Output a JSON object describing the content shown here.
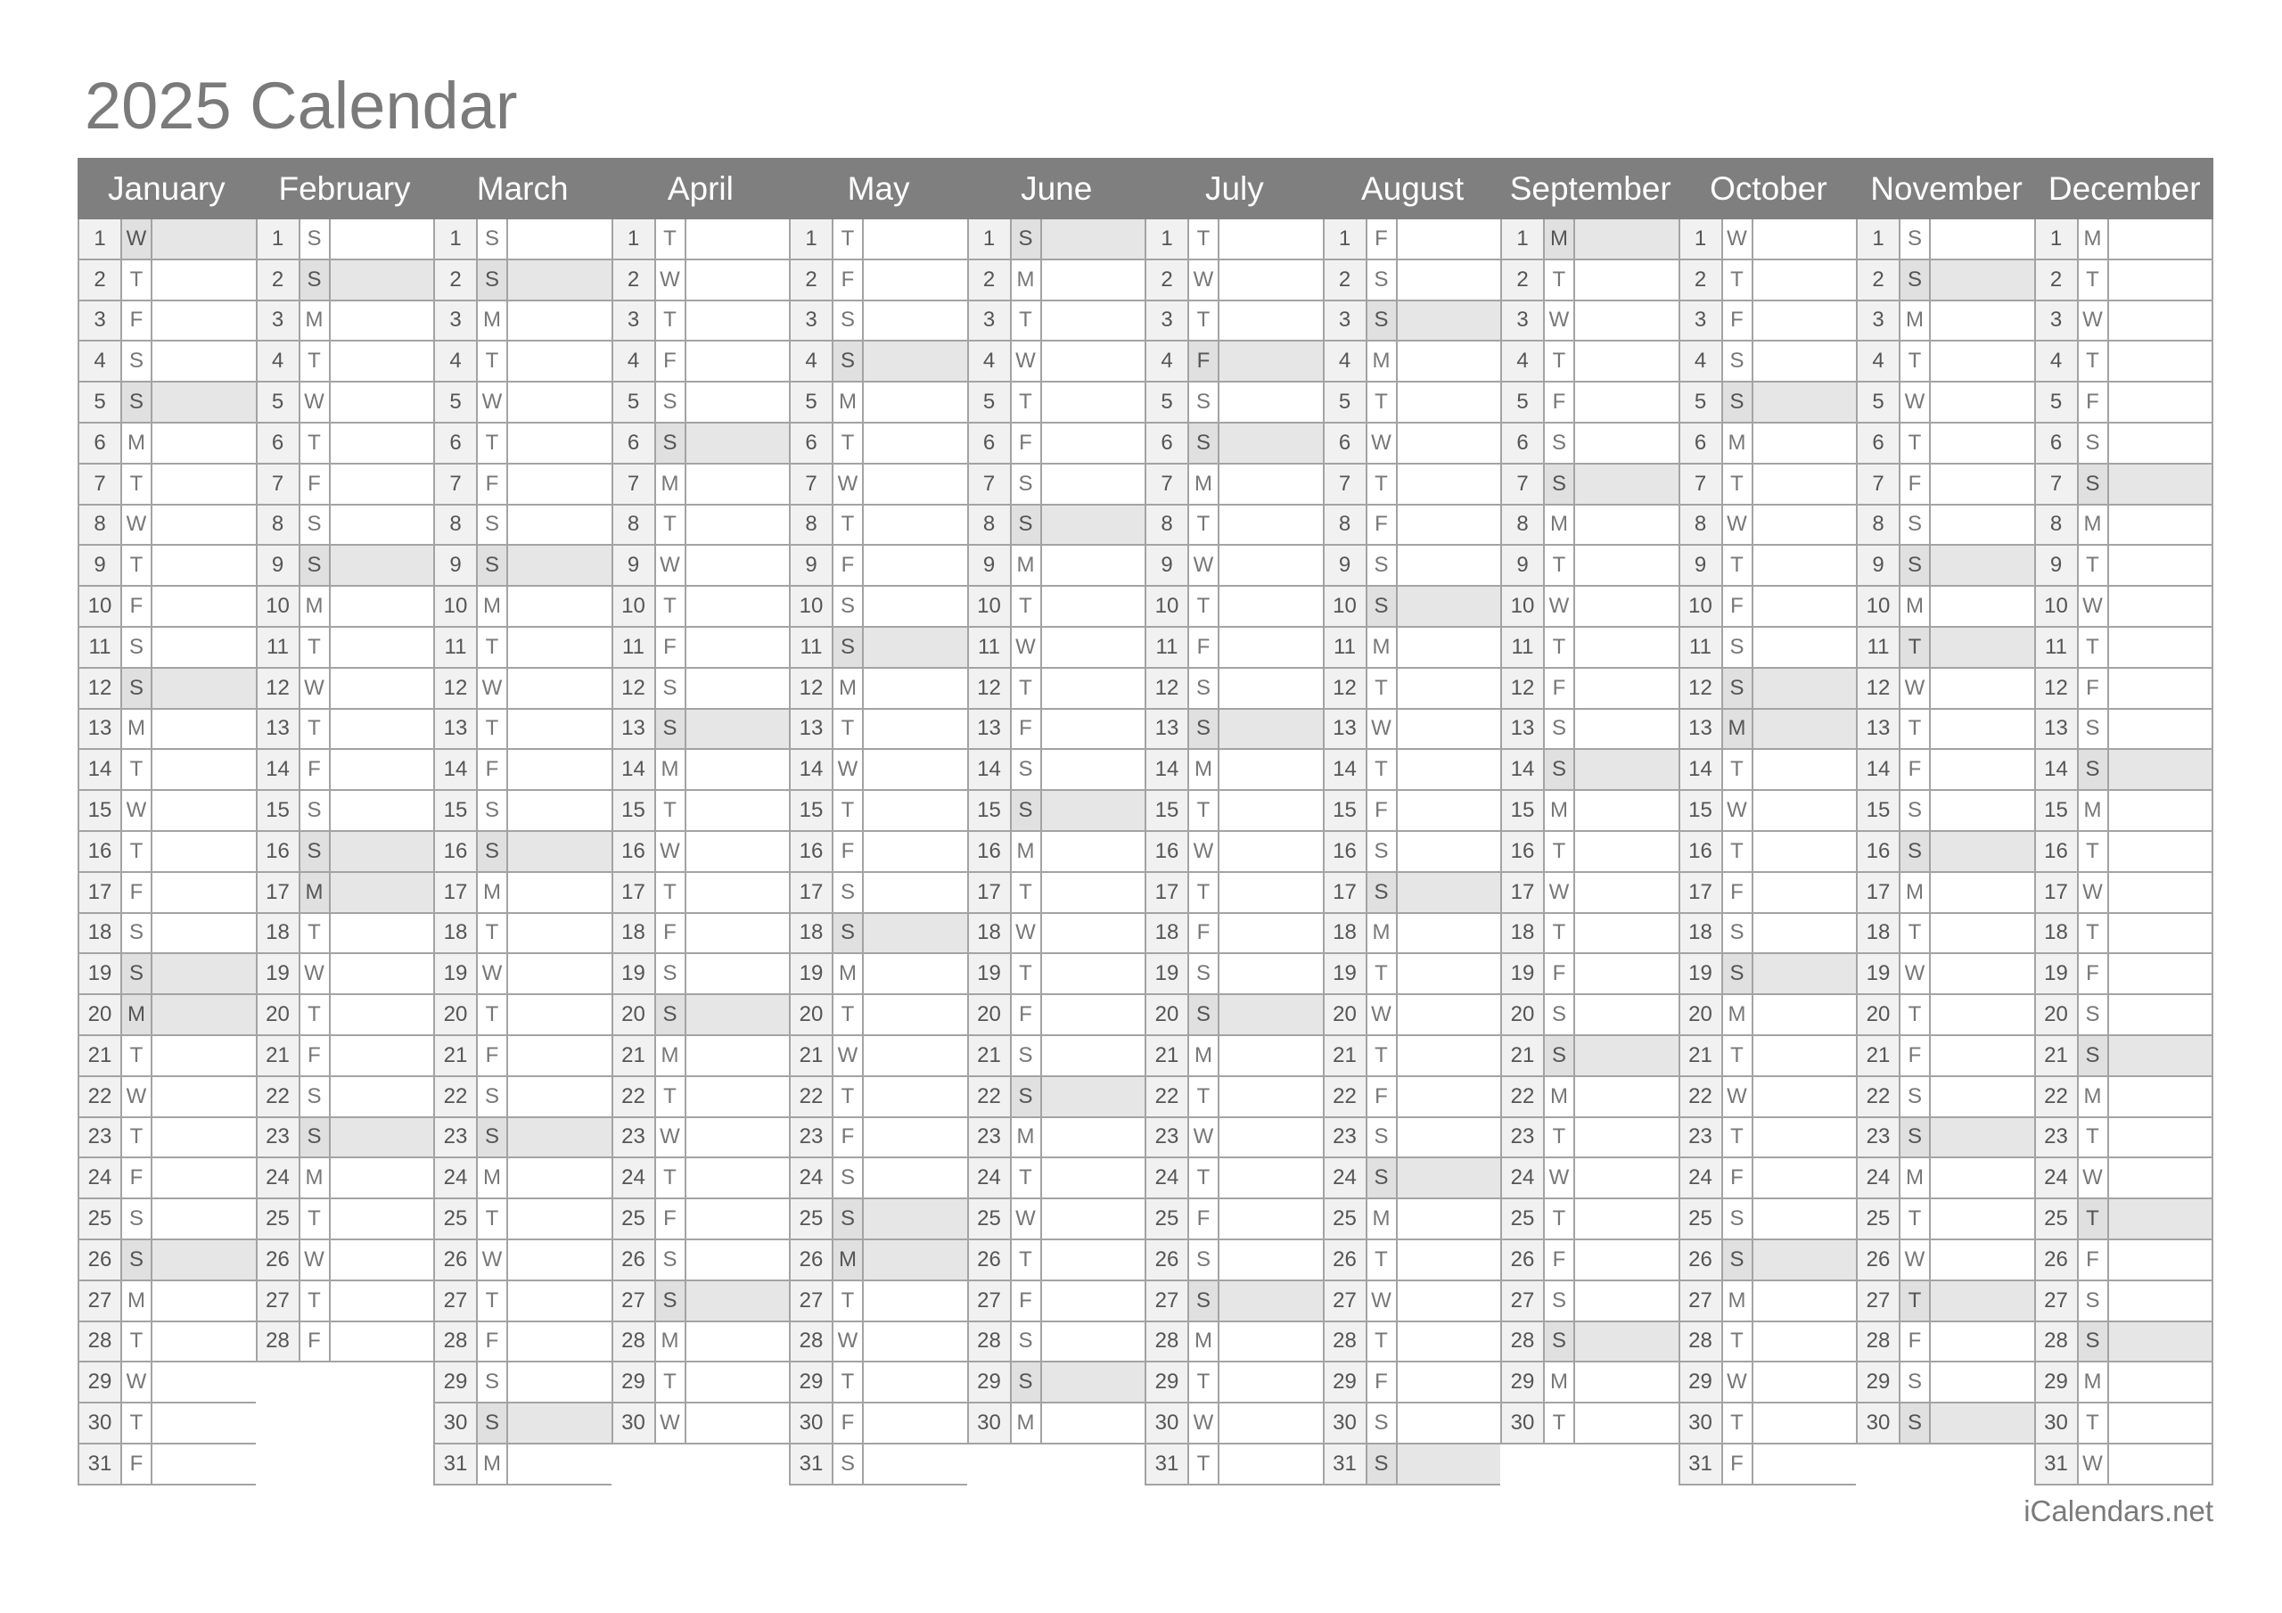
{
  "title": "2025 Calendar",
  "year": 2025,
  "footer": "iCalendars.net",
  "colors": {
    "header": "#7f7f7f",
    "highlight": "#e6e6e6",
    "day_number_bg": "#f1f1f1",
    "grid": "#a3a3a3"
  },
  "highlight_sundays": true,
  "months": [
    {
      "name": "January",
      "weekdays": "WTFSSMTWTFSSMTWTFSSMTWTFSSMTWTF",
      "holidays": [
        1,
        20
      ]
    },
    {
      "name": "February",
      "weekdays": "SSMTWTFSSMTWTFSSMTWTFSSMTWTF",
      "holidays": [
        17
      ]
    },
    {
      "name": "March",
      "weekdays": "SSMTWTFSSMTWTFSSMTWTFSSMTWTFSSM",
      "holidays": []
    },
    {
      "name": "April",
      "weekdays": "TWTFSSMTWTFSSMTWTFSSMTWTFSSMTW",
      "holidays": []
    },
    {
      "name": "May",
      "weekdays": "TFSSMTWTFSSMTWTFSSMTWTFSSMTWTFS",
      "holidays": [
        26
      ]
    },
    {
      "name": "June",
      "weekdays": "SMTWTFSSMTWTFSSMTWTFSSMTWTFSSM",
      "holidays": []
    },
    {
      "name": "July",
      "weekdays": "TWTFSSMTWTFSSMTWTFSSMTWTFSSMTWT",
      "holidays": [
        4
      ]
    },
    {
      "name": "August",
      "weekdays": "FSSMTWTFSSMTWTFSSMTWTFSSMTWTFSS",
      "holidays": []
    },
    {
      "name": "September",
      "weekdays": "MTWTFSSMTWTFSSMTWTFSSMTWTFSSMT",
      "holidays": [
        1
      ]
    },
    {
      "name": "October",
      "weekdays": "WTFSSMTWTFSSMTWTFSSMTWTFSSMTWTF",
      "holidays": [
        13
      ]
    },
    {
      "name": "November",
      "weekdays": "SSMTWTFSSMTWTFSSMTWTFSSMTWTFSS",
      "holidays": [
        11,
        27
      ]
    },
    {
      "name": "December",
      "weekdays": "MTWTFSSMTWTFSSMTWTFSSMTWTFSSMTW",
      "holidays": [
        25
      ]
    }
  ]
}
